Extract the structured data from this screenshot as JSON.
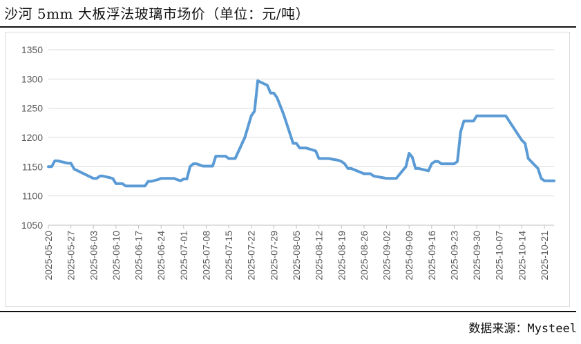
{
  "title": "沙河 5mm 大板浮法玻璃市场价（单位：元/吨）",
  "source": "数据来源：Mysteel",
  "chart_data": {
    "type": "line",
    "ylim": [
      1050,
      1350
    ],
    "yticks": [
      1050,
      1100,
      1150,
      1200,
      1250,
      1300,
      1350
    ],
    "x_start": "2025-05-20",
    "x_end": "2025-10-24",
    "xticks": [
      "2025-05-20",
      "2025-05-27",
      "2025-06-03",
      "2025-06-10",
      "2025-06-17",
      "2025-06-24",
      "2025-07-01",
      "2025-07-08",
      "2025-07-15",
      "2025-07-22",
      "2025-07-29",
      "2025-08-05",
      "2025-08-12",
      "2025-08-19",
      "2025-08-26",
      "2025-09-02",
      "2025-09-09",
      "2025-09-16",
      "2025-09-23",
      "2025-09-30",
      "2025-10-07",
      "2025-10-14",
      "2025-10-21"
    ],
    "color": "#5b9bd5",
    "grid": true,
    "series": [
      {
        "points": [
          [
            "2025-05-20",
            1150
          ],
          [
            "2025-05-21",
            1150
          ],
          [
            "2025-05-22",
            1160
          ],
          [
            "2025-05-23",
            1160
          ],
          [
            "2025-05-26",
            1156
          ],
          [
            "2025-05-27",
            1156
          ],
          [
            "2025-05-28",
            1146
          ],
          [
            "2025-06-03",
            1130
          ],
          [
            "2025-06-04",
            1130
          ],
          [
            "2025-06-05",
            1134
          ],
          [
            "2025-06-06",
            1134
          ],
          [
            "2025-06-09",
            1130
          ],
          [
            "2025-06-10",
            1121
          ],
          [
            "2025-06-11",
            1121
          ],
          [
            "2025-06-12",
            1121
          ],
          [
            "2025-06-13",
            1117
          ],
          [
            "2025-06-19",
            1117
          ],
          [
            "2025-06-20",
            1125
          ],
          [
            "2025-06-21",
            1125
          ],
          [
            "2025-06-23",
            1128
          ],
          [
            "2025-06-24",
            1130
          ],
          [
            "2025-06-28",
            1130
          ],
          [
            "2025-06-30",
            1126
          ],
          [
            "2025-07-01",
            1129
          ],
          [
            "2025-07-02",
            1129
          ],
          [
            "2025-07-03",
            1150
          ],
          [
            "2025-07-04",
            1155
          ],
          [
            "2025-07-05",
            1155
          ],
          [
            "2025-07-07",
            1151
          ],
          [
            "2025-07-10",
            1151
          ],
          [
            "2025-07-11",
            1168
          ],
          [
            "2025-07-14",
            1168
          ],
          [
            "2025-07-15",
            1164
          ],
          [
            "2025-07-17",
            1164
          ],
          [
            "2025-07-20",
            1200
          ],
          [
            "2025-07-22",
            1237
          ],
          [
            "2025-07-23",
            1245
          ],
          [
            "2025-07-24",
            1297
          ],
          [
            "2025-07-27",
            1289
          ],
          [
            "2025-07-28",
            1276
          ],
          [
            "2025-07-29",
            1276
          ],
          [
            "2025-07-30",
            1268
          ],
          [
            "2025-08-01",
            1240
          ],
          [
            "2025-08-04",
            1190
          ],
          [
            "2025-08-05",
            1190
          ],
          [
            "2025-08-06",
            1182
          ],
          [
            "2025-08-08",
            1182
          ],
          [
            "2025-08-11",
            1177
          ],
          [
            "2025-08-12",
            1164
          ],
          [
            "2025-08-15",
            1164
          ],
          [
            "2025-08-18",
            1161
          ],
          [
            "2025-08-19",
            1159
          ],
          [
            "2025-08-20",
            1155
          ],
          [
            "2025-08-21",
            1147
          ],
          [
            "2025-08-22",
            1147
          ],
          [
            "2025-08-26",
            1138
          ],
          [
            "2025-08-28",
            1138
          ],
          [
            "2025-08-29",
            1134
          ],
          [
            "2025-09-01",
            1131
          ],
          [
            "2025-09-02",
            1130
          ],
          [
            "2025-09-05",
            1130
          ],
          [
            "2025-09-08",
            1150
          ],
          [
            "2025-09-09",
            1173
          ],
          [
            "2025-09-10",
            1166
          ],
          [
            "2025-09-11",
            1147
          ],
          [
            "2025-09-12",
            1147
          ],
          [
            "2025-09-15",
            1143
          ],
          [
            "2025-09-16",
            1155
          ],
          [
            "2025-09-17",
            1159
          ],
          [
            "2025-09-18",
            1159
          ],
          [
            "2025-09-19",
            1155
          ],
          [
            "2025-09-23",
            1155
          ],
          [
            "2025-09-24",
            1159
          ],
          [
            "2025-09-25",
            1210
          ],
          [
            "2025-09-26",
            1228
          ],
          [
            "2025-09-29",
            1228
          ],
          [
            "2025-09-30",
            1237
          ],
          [
            "2025-10-09",
            1237
          ],
          [
            "2025-10-14",
            1195
          ],
          [
            "2025-10-15",
            1190
          ],
          [
            "2025-10-16",
            1164
          ],
          [
            "2025-10-19",
            1147
          ],
          [
            "2025-10-20",
            1130
          ],
          [
            "2025-10-21",
            1126
          ],
          [
            "2025-10-24",
            1126
          ]
        ]
      }
    ]
  }
}
